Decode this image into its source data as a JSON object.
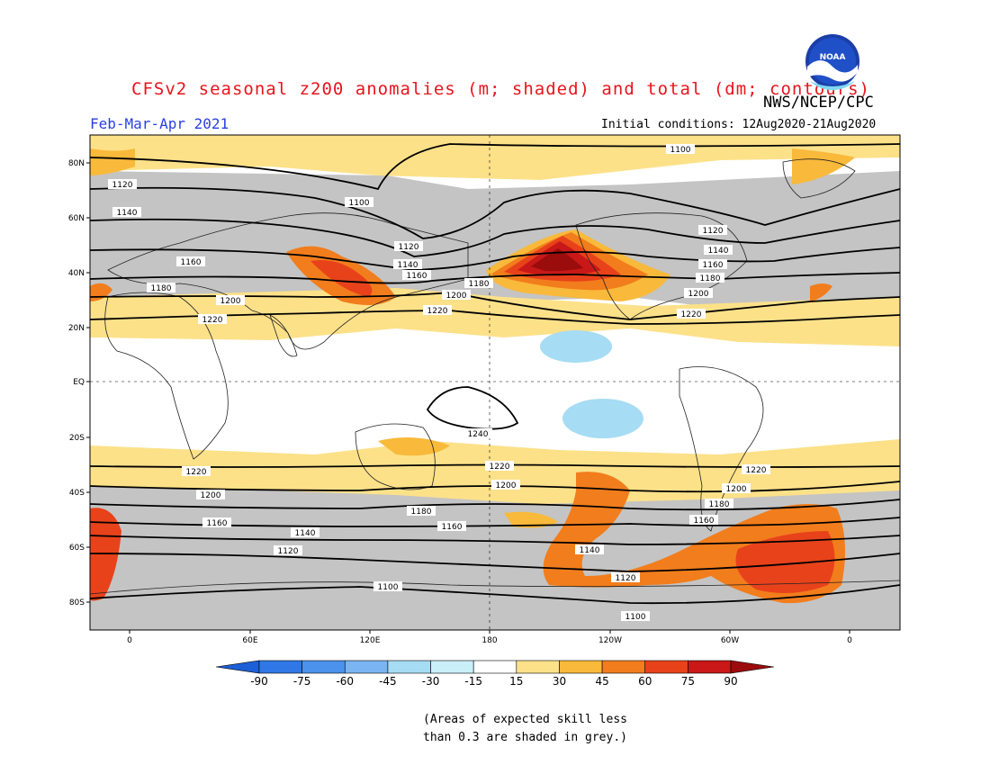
{
  "header": {
    "title": "CFSv2 seasonal z200 anomalies (m; shaded) and total (dm; contours)",
    "agency": "NWS/NCEP/CPC",
    "logo_text": "NOAA",
    "period": "Feb-Mar-Apr 2021",
    "initial_conditions": "Initial conditions: 12Aug2020-21Aug2020"
  },
  "map": {
    "lat_ticks": [
      "80N",
      "60N",
      "40N",
      "20N",
      "EQ",
      "20S",
      "40S",
      "60S",
      "80S"
    ],
    "lon_ticks": [
      "0",
      "60E",
      "120E",
      "180",
      "120W",
      "60W",
      "0"
    ],
    "contour_labels": [
      "1100",
      "1120",
      "1140",
      "1160",
      "1180",
      "1200",
      "1220",
      "1240"
    ],
    "skill_mask_color": "#c4c4c4"
  },
  "colorbar": {
    "levels": [
      "-90",
      "-75",
      "-60",
      "-45",
      "-30",
      "-15",
      "15",
      "30",
      "45",
      "60",
      "75",
      "90"
    ],
    "colors": [
      "#1c5fd6",
      "#2f78e6",
      "#4a92ec",
      "#7ab4f2",
      "#a6dcf4",
      "#c9f0f8",
      "#ffffff",
      "#fde189",
      "#f9b93a",
      "#f27d1c",
      "#e8421b",
      "#c81818",
      "#9b0c0c"
    ]
  },
  "footnote": {
    "line1": "(Areas of expected skill less",
    "line2": "than 0.3 are shaded in grey.)"
  }
}
